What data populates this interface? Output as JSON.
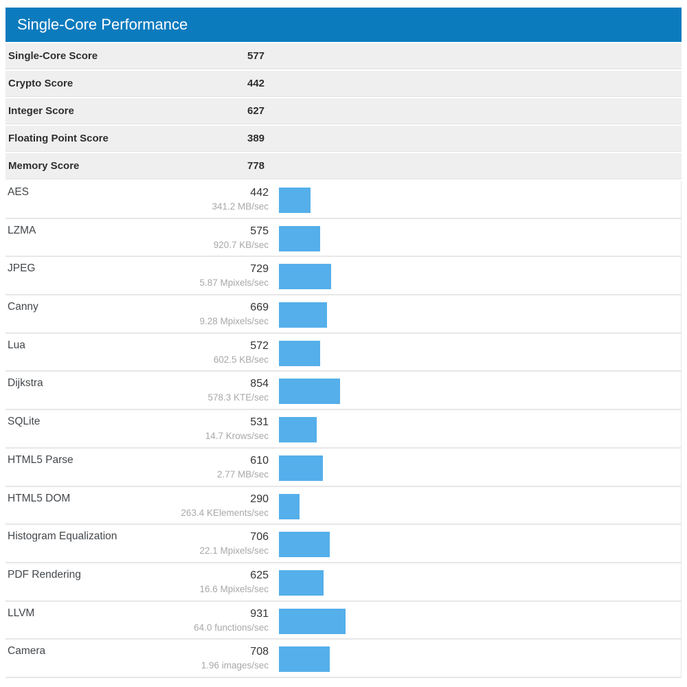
{
  "header": {
    "title": "Single-Core Performance"
  },
  "scores": [
    {
      "label": "Single-Core Score",
      "value": "577"
    },
    {
      "label": "Crypto Score",
      "value": "442"
    },
    {
      "label": "Integer Score",
      "value": "627"
    },
    {
      "label": "Floating Point Score",
      "value": "389"
    },
    {
      "label": "Memory Score",
      "value": "778"
    }
  ],
  "benchmarks": [
    {
      "label": "AES",
      "value": 442,
      "rate": "341.2 MB/sec"
    },
    {
      "label": "LZMA",
      "value": 575,
      "rate": "920.7 KB/sec"
    },
    {
      "label": "JPEG",
      "value": 729,
      "rate": "5.87 Mpixels/sec"
    },
    {
      "label": "Canny",
      "value": 669,
      "rate": "9.28 Mpixels/sec"
    },
    {
      "label": "Lua",
      "value": 572,
      "rate": "602.5 KB/sec"
    },
    {
      "label": "Dijkstra",
      "value": 854,
      "rate": "578.3 KTE/sec"
    },
    {
      "label": "SQLite",
      "value": 531,
      "rate": "14.7 Krows/sec"
    },
    {
      "label": "HTML5 Parse",
      "value": 610,
      "rate": "2.77 MB/sec"
    },
    {
      "label": "HTML5 DOM",
      "value": 290,
      "rate": "263.4 KElements/sec"
    },
    {
      "label": "Histogram Equalization",
      "value": 706,
      "rate": "22.1 Mpixels/sec"
    },
    {
      "label": "PDF Rendering",
      "value": 625,
      "rate": "16.6 Mpixels/sec"
    },
    {
      "label": "LLVM",
      "value": 931,
      "rate": "64.0 functions/sec"
    },
    {
      "label": "Camera",
      "value": 708,
      "rate": "1.96 images/sec"
    }
  ],
  "colors": {
    "header_bg": "#0c7bbe",
    "header_text": "#ffffff",
    "bar": "#55afea",
    "score_row_bg": "#efefef",
    "separator": "#e7e7e7"
  },
  "chart_data": {
    "type": "bar",
    "orientation": "horizontal",
    "title": "Single-Core Performance",
    "categories": [
      "AES",
      "LZMA",
      "JPEG",
      "Canny",
      "Lua",
      "Dijkstra",
      "SQLite",
      "HTML5 Parse",
      "HTML5 DOM",
      "Histogram Equalization",
      "PDF Rendering",
      "LLVM",
      "Camera"
    ],
    "values": [
      442,
      575,
      729,
      669,
      572,
      854,
      531,
      610,
      290,
      706,
      625,
      931,
      708
    ],
    "value_labels": [
      "442",
      "575",
      "729",
      "669",
      "572",
      "854",
      "531",
      "610",
      "290",
      "706",
      "625",
      "931",
      "708"
    ],
    "rate_labels": [
      "341.2 MB/sec",
      "920.7 KB/sec",
      "5.87 Mpixels/sec",
      "9.28 Mpixels/sec",
      "602.5 KB/sec",
      "578.3 KTE/sec",
      "14.7 Krows/sec",
      "2.77 MB/sec",
      "263.4 KElements/sec",
      "22.1 Mpixels/sec",
      "16.6 Mpixels/sec",
      "64.0 functions/sec",
      "1.96 images/sec"
    ],
    "summary_scores": {
      "Single-Core Score": 577,
      "Crypto Score": 442,
      "Integer Score": 627,
      "Floating Point Score": 389,
      "Memory Score": 778
    },
    "bar_color": "#55afea",
    "grid": false,
    "legend": false
  }
}
